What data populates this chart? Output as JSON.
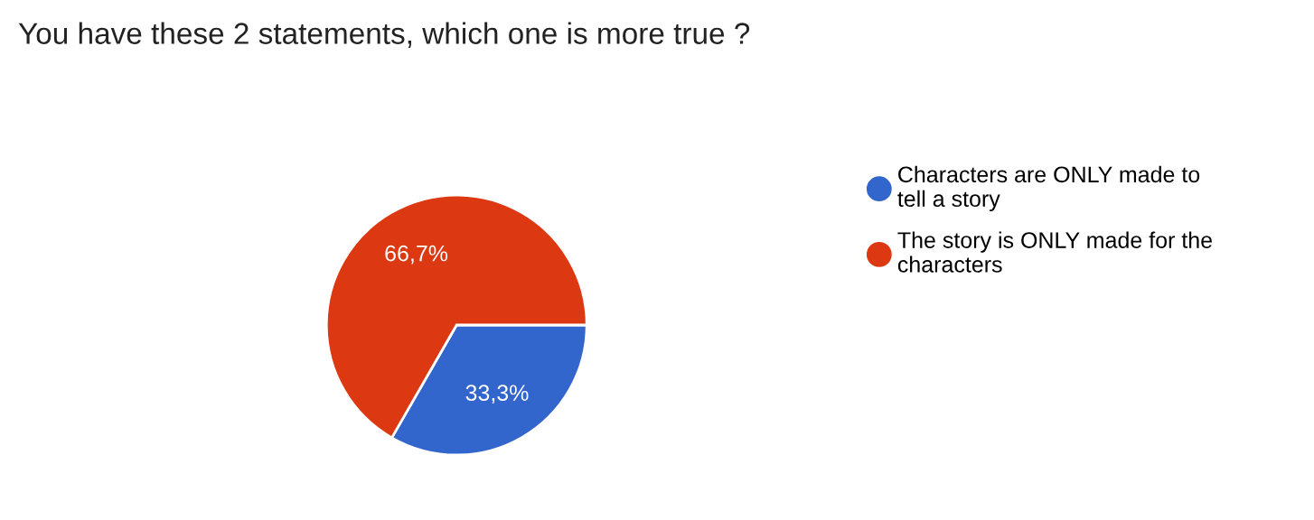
{
  "chart_data": {
    "type": "pie",
    "title": "You have these 2 statements, which one is more true ?",
    "categories": [
      "Characters are ONLY made to tell a story",
      "The story is ONLY made for the characters"
    ],
    "values": [
      33.3,
      66.7
    ],
    "colors": [
      "#3366cc",
      "#dc3912"
    ],
    "value_labels": [
      "33,3%",
      "66,7%"
    ],
    "legend": "right"
  }
}
